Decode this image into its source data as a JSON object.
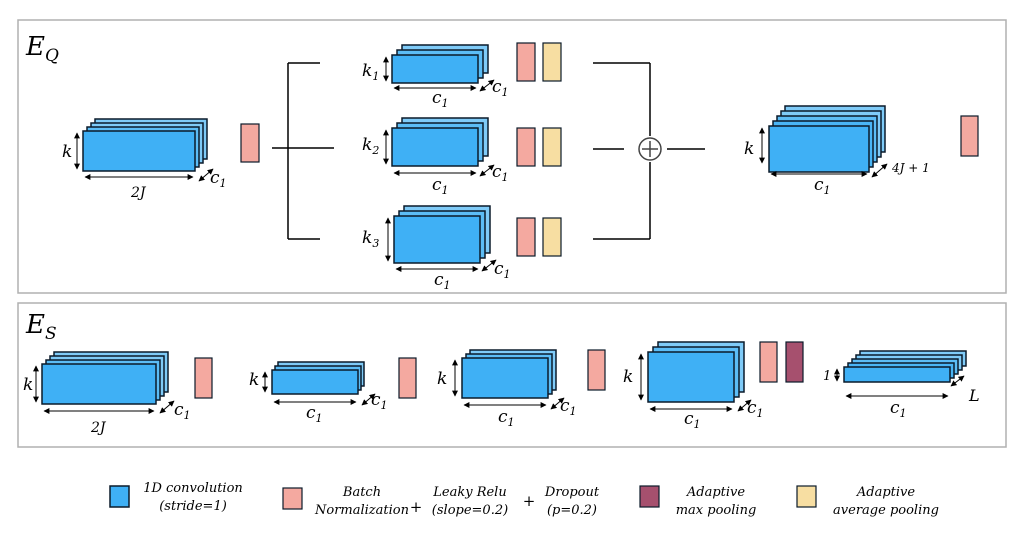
{
  "colors": {
    "conv_fill": "#3fb0f5",
    "conv_fill_light": "#7fcbf8",
    "conv_outline": "#0a1a2a",
    "batchnorm_fill": "#f4a9a0",
    "maxpool_fill": "#a6506e",
    "avgpool_fill": "#f7dea2",
    "panel_border": "#b0b0b0"
  },
  "panels": {
    "eq": {
      "label_main": "E",
      "label_sub": "Q",
      "input": {
        "height_label": "k",
        "width_label": "2J",
        "depth_label": "c",
        "depth_sub": "1"
      },
      "branches": [
        {
          "height_label": "k",
          "height_sub": "1",
          "width_label": "c",
          "width_sub": "1",
          "depth_label": "c",
          "depth_sub": "1"
        },
        {
          "height_label": "k",
          "height_sub": "2",
          "width_label": "c",
          "width_sub": "1",
          "depth_label": "c",
          "depth_sub": "1"
        },
        {
          "height_label": "k",
          "height_sub": "3",
          "width_label": "c",
          "width_sub": "1",
          "depth_label": "c",
          "depth_sub": "1"
        }
      ],
      "sum_symbol": "⊕",
      "output": {
        "height_label": "k",
        "width_label": "c",
        "width_sub": "1",
        "depth_label": "4J + 1"
      }
    },
    "es": {
      "label_main": "E",
      "label_sub": "S",
      "blocks": [
        {
          "height_label": "k",
          "width_label": "2J",
          "depth_label": "c",
          "depth_sub": "1"
        },
        {
          "height_label": "k",
          "width_label": "c",
          "width_sub": "1",
          "depth_label": "c",
          "depth_sub": "1"
        },
        {
          "height_label": "k",
          "width_label": "c",
          "width_sub": "1",
          "depth_label": "c",
          "depth_sub": "1"
        },
        {
          "height_label": "k",
          "width_label": "c",
          "width_sub": "1",
          "depth_label": "c",
          "depth_sub": "1"
        },
        {
          "height_label": "1",
          "width_label": "c",
          "width_sub": "1",
          "depth_label": "L"
        }
      ]
    }
  },
  "legend": {
    "conv": {
      "line1": "1D convolution",
      "line2": "(stride=1)"
    },
    "batchnorm": {
      "line1": "Batch",
      "line2": "Normalization"
    },
    "plus": "+",
    "relu": {
      "line1": "Leaky Relu",
      "line2": "(slope=0.2)"
    },
    "dropout": {
      "line1": "Dropout",
      "line2": "(p=0.2)"
    },
    "maxpool": {
      "line1": "Adaptive",
      "line2": "max pooling"
    },
    "avgpool": {
      "line1": "Adaptive",
      "line2": "average pooling"
    }
  }
}
